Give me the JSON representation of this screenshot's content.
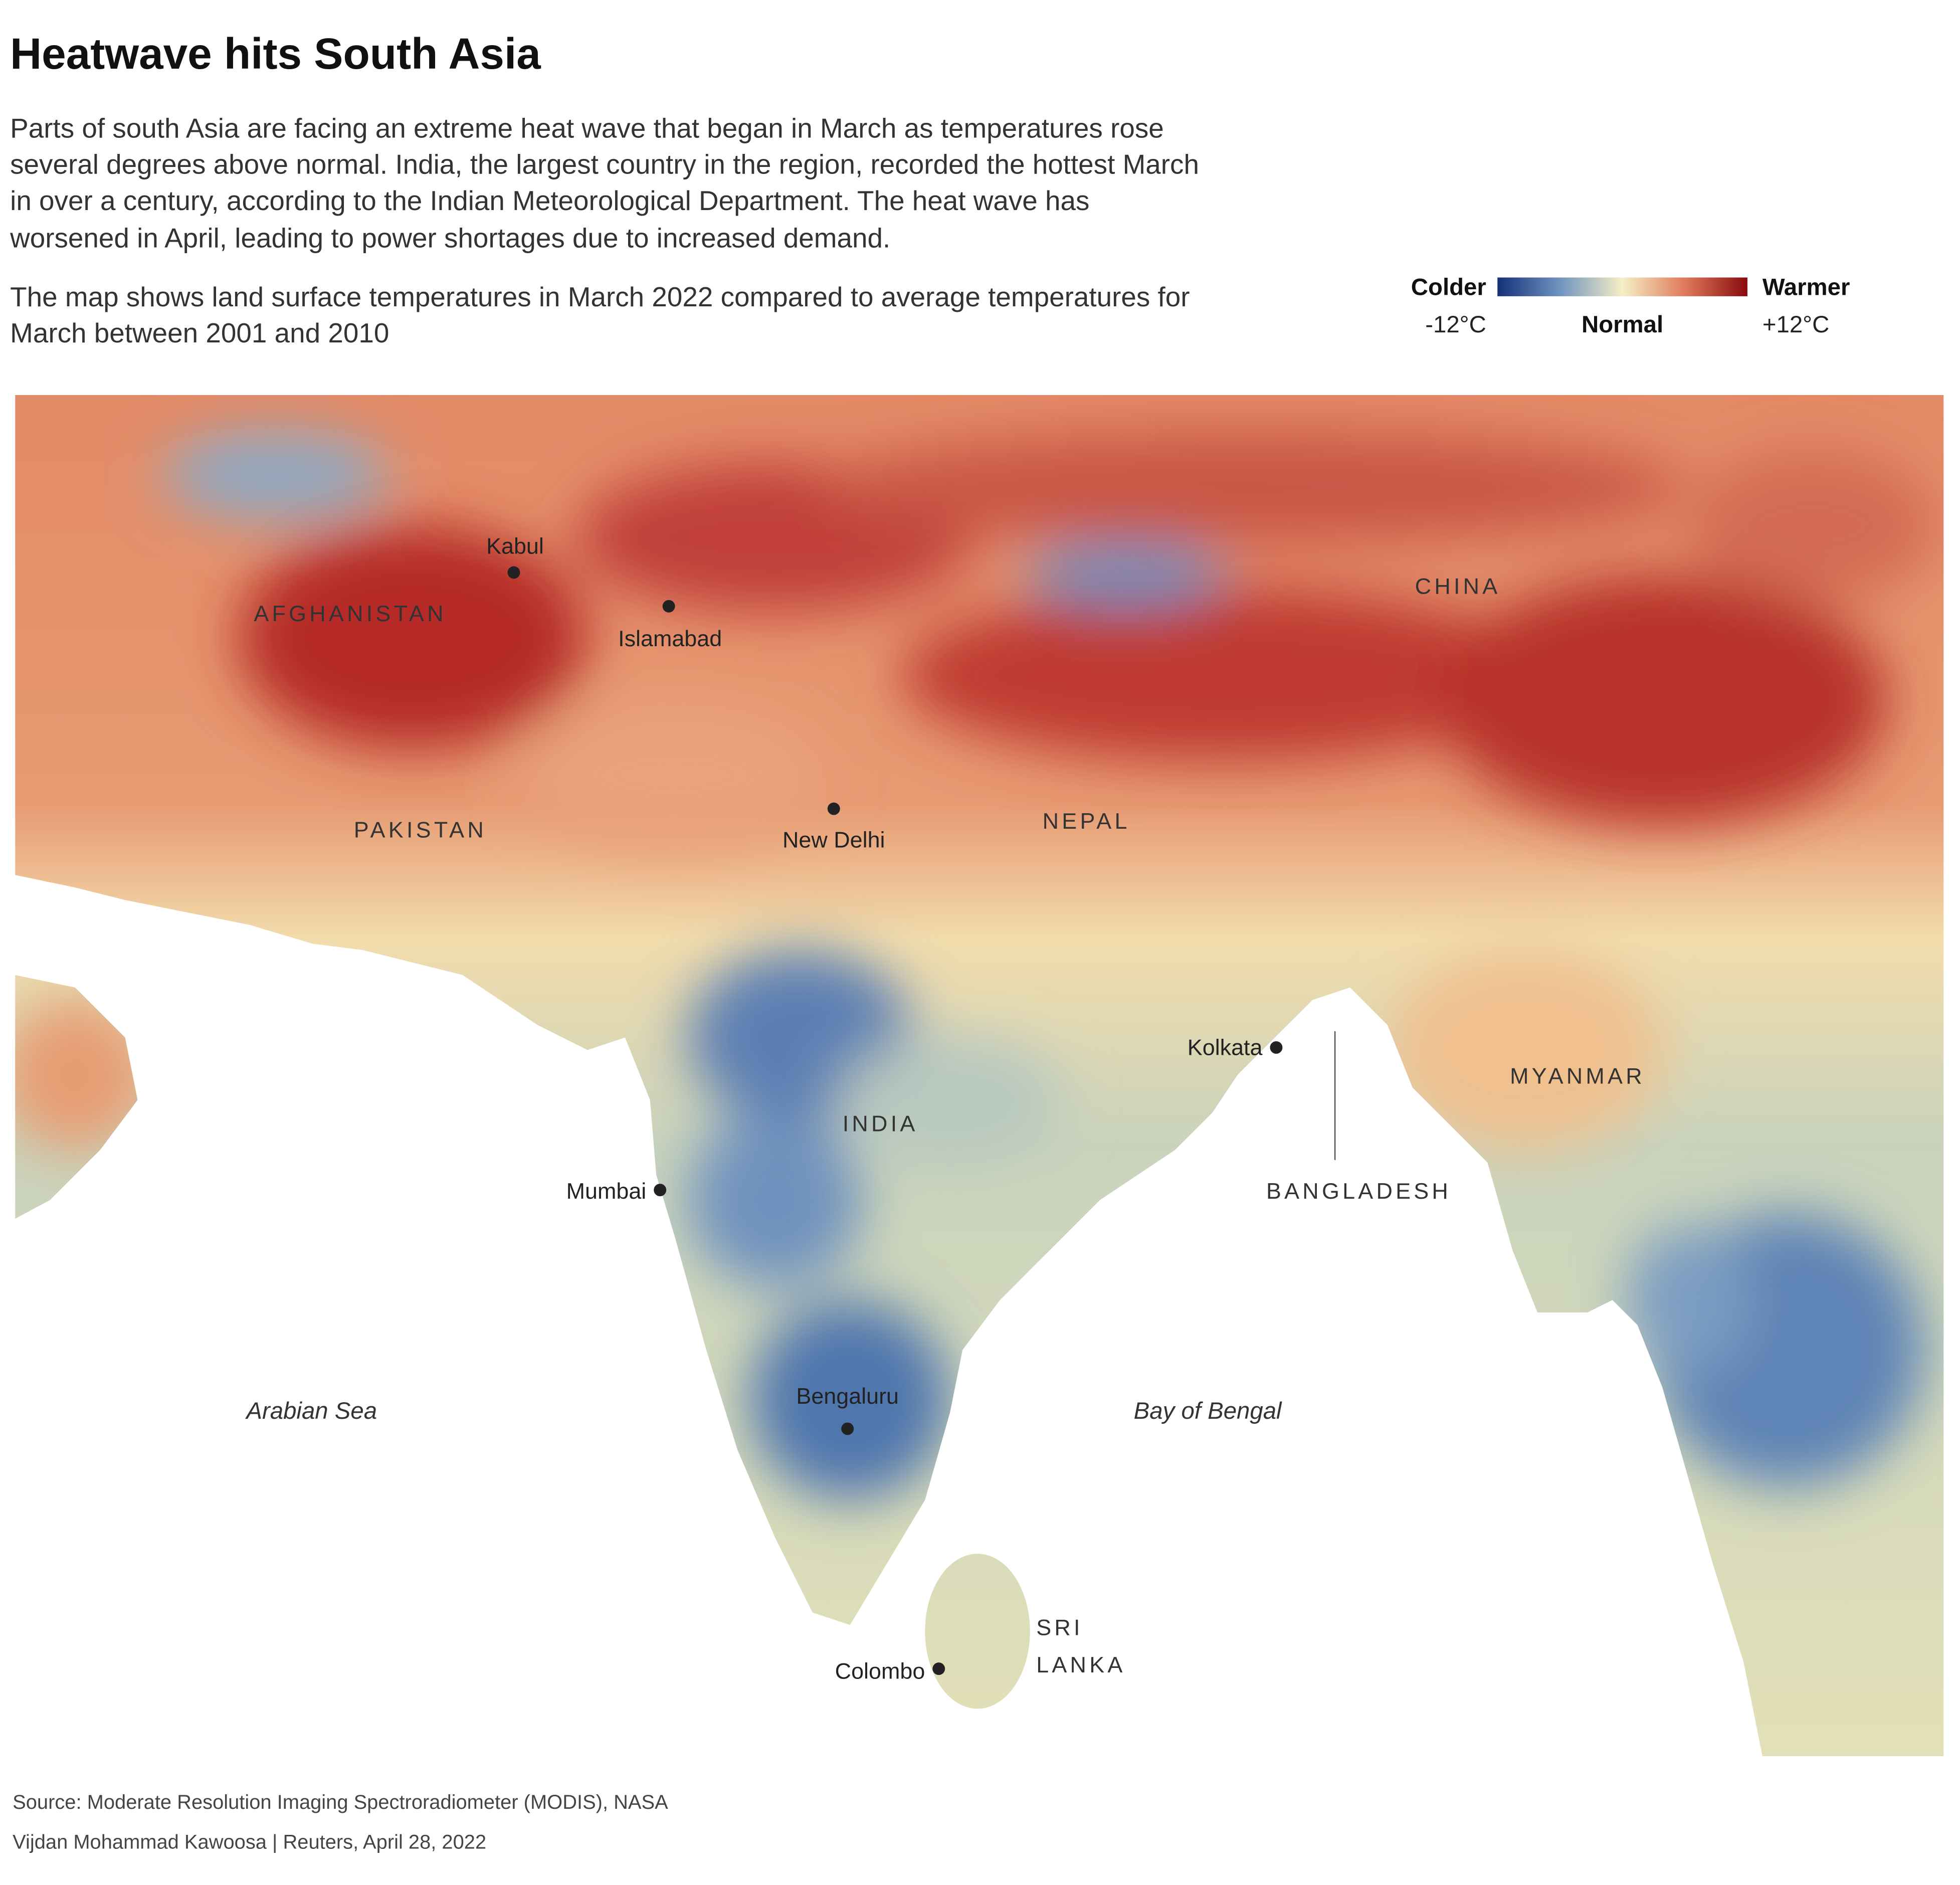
{
  "title": "Heatwave hits South Asia",
  "intro": [
    "Parts of south Asia are facing an extreme heat wave that began in March as temperatures rose",
    "several degrees above normal. India, the largest country in the region, recorded the hottest March",
    "in over a century, according to the Indian Meteorological Department. The heat wave has",
    "worsened in April, leading to power shortages due to increased demand."
  ],
  "note": [
    "The map shows land surface temperatures in March 2022 compared to average temperatures for",
    "March between 2001 and 2010"
  ],
  "legend": {
    "colder": "Colder",
    "warmer": "Warmer",
    "min": "-12°C",
    "normal": "Normal",
    "max": "+12°C"
  },
  "countries": [
    "AFGHANISTAN",
    "PAKISTAN",
    "NEPAL",
    "CHINA",
    "INDIA",
    "MYANMAR",
    "BANGLADESH",
    [
      "SRI",
      "LANKA"
    ]
  ],
  "cities": [
    "Kabul",
    "Islamabad",
    "New Delhi",
    "Kolkata",
    "Mumbai",
    "Bengaluru",
    "Colombo"
  ],
  "seas": [
    "Arabian Sea",
    "Bay of Bengal"
  ],
  "source": "Source: Moderate Resolution Imaging Spectroradiometer (MODIS), NASA",
  "credit": "Vijdan Mohammad Kawoosa | Reuters, April 28, 2022"
}
